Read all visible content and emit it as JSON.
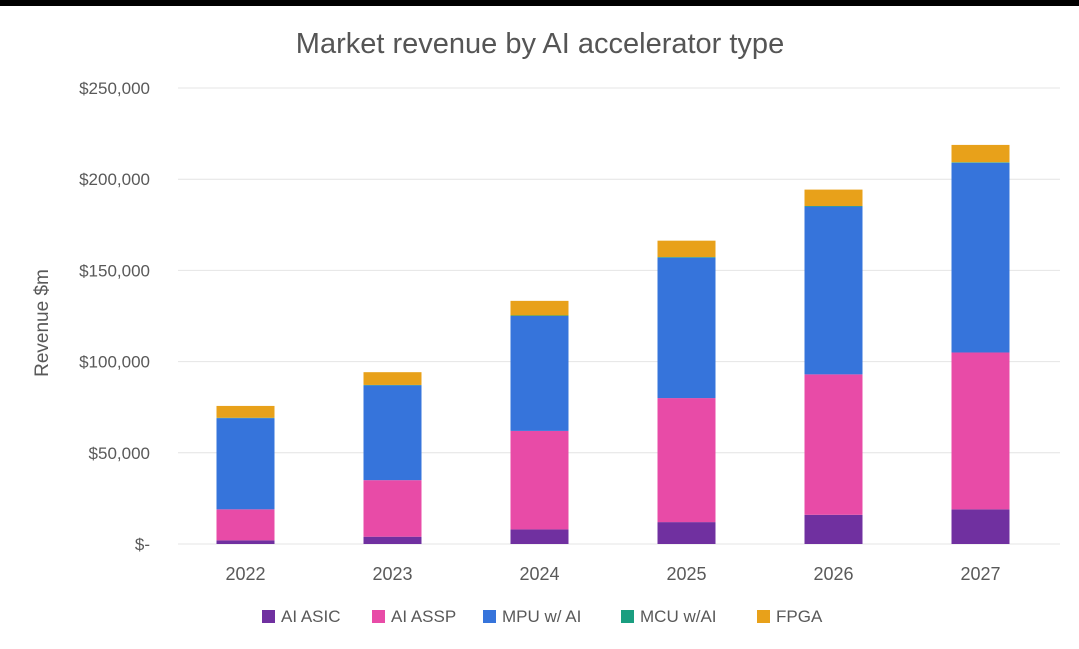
{
  "chart_data": {
    "type": "bar",
    "stacked": true,
    "title": "Market revenue by AI accelerator type",
    "xlabel": "",
    "ylabel": "Revenue $m",
    "ylim": [
      0,
      250000
    ],
    "yticks": [
      0,
      50000,
      100000,
      150000,
      200000,
      250000
    ],
    "ytick_labels": [
      "$-",
      "$50,000",
      "$100,000",
      "$150,000",
      "$200,000",
      "$250,000"
    ],
    "grid": true,
    "legend_position": "bottom",
    "categories": [
      "2022",
      "2023",
      "2024",
      "2025",
      "2026",
      "2027"
    ],
    "series": [
      {
        "name": "AI ASIC",
        "color": "#7030a0",
        "values": [
          2000,
          4000,
          8000,
          12000,
          16000,
          19000
        ]
      },
      {
        "name": "AI ASSP",
        "color": "#e84ba7",
        "values": [
          17000,
          31000,
          54000,
          68000,
          77000,
          86000
        ]
      },
      {
        "name": "MPU w/ AI",
        "color": "#3674db",
        "values": [
          50000,
          52000,
          63000,
          77000,
          92000,
          104000
        ]
      },
      {
        "name": "MCU w/AI",
        "color": "#1a9e80",
        "values": [
          200,
          200,
          300,
          300,
          300,
          300
        ]
      },
      {
        "name": "FPGA",
        "color": "#e8a11a",
        "values": [
          6500,
          7000,
          8000,
          9000,
          9000,
          9500
        ]
      }
    ]
  }
}
